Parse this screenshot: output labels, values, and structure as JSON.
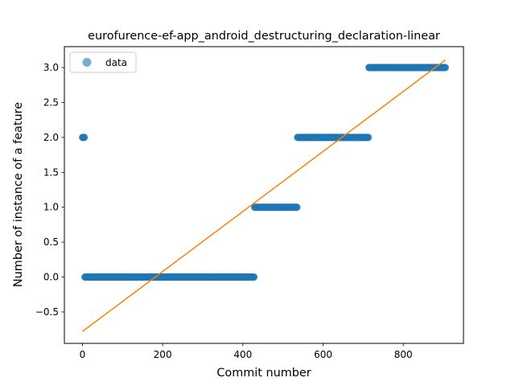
{
  "chart_data": {
    "type": "scatter",
    "title": "eurofurence-ef-app_android_destructuring_declaration-linear",
    "xlabel": "Commit number",
    "ylabel": "Number of instance of a feature",
    "xlim": [
      -45,
      950
    ],
    "ylim": [
      -0.95,
      3.3
    ],
    "xticks": [
      0,
      200,
      400,
      600,
      800
    ],
    "yticks": [
      -0.5,
      0.0,
      0.5,
      1.0,
      1.5,
      2.0,
      2.5,
      3.0
    ],
    "ytick_labels": [
      "−0.5",
      "0.0",
      "0.5",
      "1.0",
      "1.5",
      "2.0",
      "2.5",
      "3.0"
    ],
    "grid": false,
    "legend": {
      "position": "upper-left",
      "entries": [
        "data"
      ]
    },
    "series": [
      {
        "name": "data",
        "kind": "scatter",
        "color": "#1f77b4",
        "alpha": 0.6,
        "segments": [
          {
            "x_start": 0,
            "x_end": 5,
            "y": 2
          },
          {
            "x_start": 6,
            "x_end": 428,
            "y": 0
          },
          {
            "x_start": 429,
            "x_end": 535,
            "y": 1
          },
          {
            "x_start": 536,
            "x_end": 713,
            "y": 2
          },
          {
            "x_start": 714,
            "x_end": 905,
            "y": 3
          }
        ]
      },
      {
        "name": "",
        "kind": "line",
        "color": "#ff7f0e",
        "x": [
          0,
          905
        ],
        "y": [
          -0.78,
          3.11
        ]
      }
    ]
  }
}
